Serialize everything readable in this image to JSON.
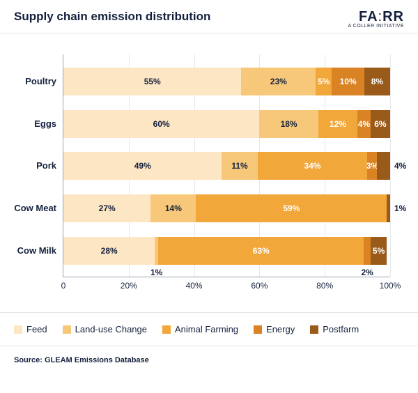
{
  "title": "Supply chain emission distribution",
  "logo": {
    "main_pre": "FA",
    "main_post": "RR",
    "sub": "A COLLER INITIATIVE"
  },
  "colors": {
    "text": "#14213d",
    "axis": "#98a0b0",
    "grid": "#e8e8e8",
    "series": {
      "feed": "#fde6c4",
      "landuse": "#f8c87a",
      "animal": "#f2a73b",
      "energy": "#d98324",
      "postfarm": "#9a5a1a"
    },
    "label_dark": "#14213d",
    "label_light": "#ffffff"
  },
  "chart": {
    "type": "stacked-bar-horizontal",
    "xmin": 0,
    "xmax": 100,
    "xticks": [
      {
        "v": 0,
        "label": "0"
      },
      {
        "v": 20,
        "label": "20%"
      },
      {
        "v": 40,
        "label": "40%"
      },
      {
        "v": 60,
        "label": "60%"
      },
      {
        "v": 80,
        "label": "80%"
      },
      {
        "v": 100,
        "label": "100%"
      }
    ],
    "row_tops_pct": [
      6,
      25,
      44,
      63,
      82
    ],
    "categories": [
      {
        "label": "Poultry",
        "segments": [
          {
            "key": "feed",
            "value": 55,
            "label": "55%",
            "text": "dark"
          },
          {
            "key": "landuse",
            "value": 23,
            "label": "23%",
            "text": "dark"
          },
          {
            "key": "animal",
            "value": 5,
            "label": "5%",
            "text": "light"
          },
          {
            "key": "energy",
            "value": 10,
            "label": "10%",
            "text": "light"
          },
          {
            "key": "postfarm",
            "value": 8,
            "label": "8%",
            "text": "light"
          }
        ]
      },
      {
        "label": "Eggs",
        "segments": [
          {
            "key": "feed",
            "value": 60,
            "label": "60%",
            "text": "dark"
          },
          {
            "key": "landuse",
            "value": 18,
            "label": "18%",
            "text": "dark"
          },
          {
            "key": "animal",
            "value": 12,
            "label": "12%",
            "text": "light"
          },
          {
            "key": "energy",
            "value": 4,
            "label": "4%",
            "text": "light"
          },
          {
            "key": "postfarm",
            "value": 6,
            "label": "6%",
            "text": "light"
          }
        ]
      },
      {
        "label": "Pork",
        "segments": [
          {
            "key": "feed",
            "value": 49,
            "label": "49%",
            "text": "dark"
          },
          {
            "key": "landuse",
            "value": 11,
            "label": "11%",
            "text": "dark"
          },
          {
            "key": "animal",
            "value": 34,
            "label": "34%",
            "text": "light"
          },
          {
            "key": "energy",
            "value": 3,
            "label": "3%",
            "text": "light"
          },
          {
            "key": "postfarm",
            "value": 4,
            "label": "4%",
            "text": "dark",
            "pos": "outside-right"
          }
        ]
      },
      {
        "label": "Cow Meat",
        "segments": [
          {
            "key": "feed",
            "value": 27,
            "label": "27%",
            "text": "dark"
          },
          {
            "key": "landuse",
            "value": 14,
            "label": "14%",
            "text": "dark"
          },
          {
            "key": "animal",
            "value": 59,
            "label": "59%",
            "text": "light"
          },
          {
            "key": "energy",
            "value": 0,
            "label": "",
            "text": "light"
          },
          {
            "key": "postfarm",
            "value": 1,
            "label": "1%",
            "text": "dark",
            "pos": "outside-right"
          }
        ]
      },
      {
        "label": "Cow Milk",
        "segments": [
          {
            "key": "feed",
            "value": 28,
            "label": "28%",
            "text": "dark"
          },
          {
            "key": "landuse",
            "value": 1,
            "label": "1%",
            "text": "dark",
            "pos": "outside-below"
          },
          {
            "key": "animal",
            "value": 63,
            "label": "63%",
            "text": "light"
          },
          {
            "key": "energy",
            "value": 2,
            "label": "2%",
            "text": "dark",
            "pos": "outside-below"
          },
          {
            "key": "postfarm",
            "value": 5,
            "label": "5%",
            "text": "light"
          }
        ]
      }
    ]
  },
  "legend": [
    {
      "key": "feed",
      "label": "Feed"
    },
    {
      "key": "landuse",
      "label": "Land-use Change"
    },
    {
      "key": "animal",
      "label": "Animal Farming"
    },
    {
      "key": "energy",
      "label": "Energy"
    },
    {
      "key": "postfarm",
      "label": "Postfarm"
    }
  ],
  "source": "Source: GLEAM Emissions Database"
}
